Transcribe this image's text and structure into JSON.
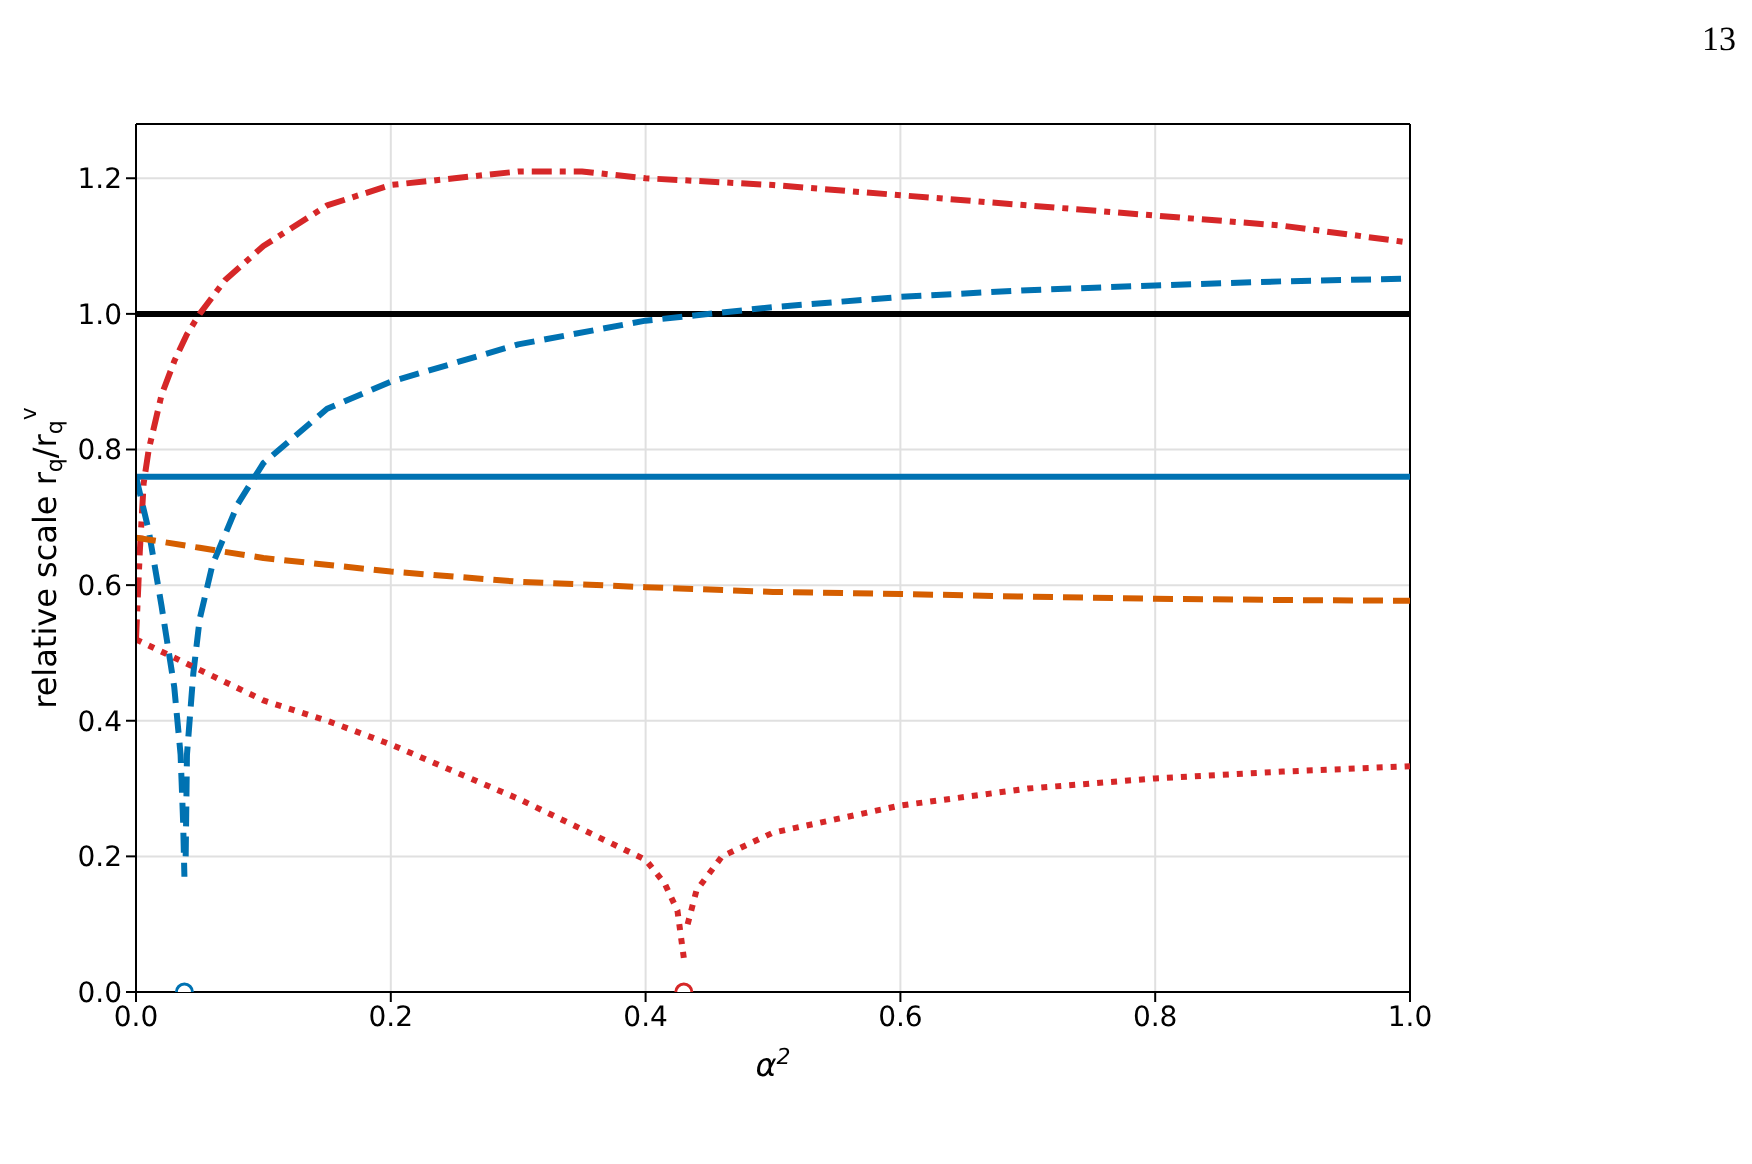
{
  "chart_data": {
    "type": "line",
    "xlabel": "α$^{2}$",
    "ylabel": "relative scale r$_{q}$/r$_{q}$$^{v}$",
    "annotations": [
      "13"
    ],
    "xlim": [
      0,
      1
    ],
    "ylim": [
      0,
      1.28
    ],
    "xticks": [
      {
        "value": 0,
        "label": "0.0"
      },
      {
        "value": 0.2,
        "label": "0.2"
      },
      {
        "value": 0.4,
        "label": "0.4"
      },
      {
        "value": 0.6,
        "label": "0.6"
      },
      {
        "value": 0.8,
        "label": "0.8"
      },
      {
        "value": 1,
        "label": "1.0"
      }
    ],
    "yticks": [
      {
        "value": 0,
        "label": "0.0"
      },
      {
        "value": 0.2,
        "label": "0.2"
      },
      {
        "value": 0.4,
        "label": "0.4"
      },
      {
        "value": 0.6,
        "label": "0.6"
      },
      {
        "value": 0.8,
        "label": "0.8"
      },
      {
        "value": 1,
        "label": "1.0"
      },
      {
        "value": 1.2,
        "label": "1.2"
      }
    ],
    "grid": true,
    "marker": "none",
    "series": [
      {
        "color": "#000000",
        "line_style": "solid",
        "x": [
          0,
          1
        ],
        "values": [
          1.0,
          1.0
        ]
      },
      {
        "color": "#0072b2",
        "line_style": "solid",
        "x": [
          0,
          1
        ],
        "values": [
          0.76,
          0.76
        ]
      },
      {
        "color": "#d62728",
        "line_style": "dashdot",
        "x": [
          0,
          0.003,
          0.006,
          0.01,
          0.02,
          0.03,
          0.04,
          0.05,
          0.07,
          0.1,
          0.15,
          0.2,
          0.25,
          0.3,
          0.35,
          0.4,
          0.5,
          0.6,
          0.7,
          0.8,
          0.9,
          1.0
        ],
        "values": [
          0.52,
          0.65,
          0.75,
          0.8,
          0.88,
          0.93,
          0.97,
          1.0,
          1.05,
          1.1,
          1.16,
          1.19,
          1.2,
          1.21,
          1.21,
          1.2,
          1.19,
          1.175,
          1.16,
          1.145,
          1.13,
          1.105
        ]
      },
      {
        "color": "#0072b2",
        "line_style": "dashed",
        "x": [
          0,
          0.01,
          0.02,
          0.03,
          0.035,
          0.037,
          0.038,
          0.0385,
          0.039,
          0.04,
          0.045,
          0.05,
          0.06,
          0.08,
          0.1,
          0.15,
          0.2,
          0.3,
          0.4,
          0.5,
          0.6,
          0.7,
          0.8,
          0.9,
          1.0
        ],
        "values": [
          0.76,
          0.68,
          0.57,
          0.45,
          0.35,
          0.25,
          0.17,
          null,
          0.2,
          0.35,
          0.47,
          0.55,
          0.63,
          0.72,
          0.78,
          0.86,
          0.9,
          0.955,
          0.99,
          1.01,
          1.025,
          1.035,
          1.042,
          1.048,
          1.052
        ]
      },
      {
        "color": "#d55e00",
        "line_style": "dashed",
        "x": [
          0,
          0.05,
          0.1,
          0.2,
          0.3,
          0.4,
          0.5,
          0.6,
          0.7,
          0.8,
          0.9,
          1.0
        ],
        "values": [
          0.67,
          0.655,
          0.64,
          0.62,
          0.605,
          0.597,
          0.59,
          0.587,
          0.583,
          0.58,
          0.578,
          0.577
        ]
      },
      {
        "color": "#d62728",
        "line_style": "dotted",
        "x": [
          0,
          0.05,
          0.1,
          0.15,
          0.2,
          0.25,
          0.3,
          0.35,
          0.4,
          0.415,
          0.425,
          0.43,
          0.431,
          0.433,
          0.44,
          0.46,
          0.5,
          0.6,
          0.7,
          0.8,
          0.9,
          1.0
        ],
        "values": [
          0.52,
          0.475,
          0.43,
          0.4,
          0.365,
          0.325,
          0.285,
          0.24,
          0.195,
          0.16,
          0.12,
          0.05,
          null,
          0.1,
          0.15,
          0.2,
          0.235,
          0.275,
          0.3,
          0.315,
          0.325,
          0.333
        ]
      },
      {
        "type": "scatter",
        "marker": "circle",
        "color": "#0072b2",
        "x": [
          0.038
        ],
        "values": [
          0
        ]
      },
      {
        "type": "scatter",
        "marker": "circle",
        "color": "#d62728",
        "x": [
          0.43
        ],
        "values": [
          0
        ]
      }
    ]
  }
}
